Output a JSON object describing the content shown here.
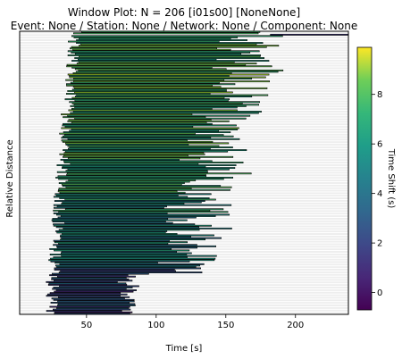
{
  "chart_data": {
    "type": "bar",
    "orientation": "horizontal-intervals",
    "title": "Window Plot: N = 206 [i01s00] [NoneNone]",
    "subtitle": "Event: None / Station: None / Network: None / Component: None",
    "xlabel": "Time [s]",
    "ylabel": "Relative Distance",
    "xlim": [
      2,
      238
    ],
    "xticks": [
      50,
      100,
      150,
      200
    ],
    "ytick_labels": false,
    "n_rows": 206,
    "grid": false,
    "colorbar": {
      "label": "Time Shift (s)",
      "colormap": "viridis",
      "range": [
        -0.7,
        9.9
      ],
      "ticks": [
        0,
        2,
        4,
        6,
        8
      ]
    },
    "outlier_window": {
      "start": 182,
      "end": 240,
      "time_shift": 1.2
    },
    "window_start_range": [
      20,
      45
    ],
    "window_end_range": [
      75,
      185
    ],
    "time_shift_trend": "low near bottom rows, high in upper-middle rows"
  }
}
